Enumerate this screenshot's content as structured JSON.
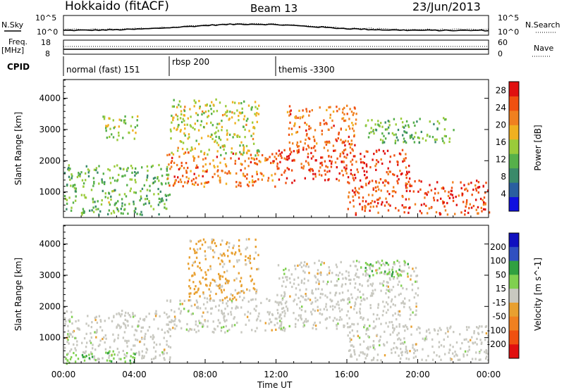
{
  "header": {
    "station": "Hokkaido (fitACF)",
    "beam": "Beam 13",
    "date": "23/Jun/2013"
  },
  "top_panels": {
    "nsky_label": "N.Sky",
    "nsearch_label": "N.Search",
    "nsky_ticks": [
      "10^5",
      "10^0"
    ],
    "nsearch_ticks": [
      "10^5",
      "10^0"
    ],
    "freq_label_1": "Freq.",
    "freq_label_2": "[MHz]",
    "freq_ticks": [
      "18",
      "8"
    ],
    "nave_label": "Nave",
    "nave_ticks": [
      "60",
      "0"
    ],
    "cpid_label": "CPID",
    "cpid_segments": [
      {
        "label": "normal (fast) 151",
        "start_hour": 0
      },
      {
        "label": "rbsp 200",
        "start_hour": 6
      },
      {
        "label": "themis -3300",
        "start_hour": 12
      }
    ]
  },
  "colors": {
    "power_scale": [
      "#1010e0",
      "#2a5fa0",
      "#3a8a6a",
      "#56b04a",
      "#9acb3a",
      "#f0b020",
      "#f08020",
      "#f05010",
      "#e01010"
    ],
    "velocity_scale": [
      "#1010c0",
      "#3050c0",
      "#30a040",
      "#80d050",
      "#c8c8c0",
      "#e8a030",
      "#f08020",
      "#f05010",
      "#e01010"
    ]
  },
  "chart_data": [
    {
      "type": "heatmap",
      "title": "Hokkaido (fitACF) Beam 13 23/Jun/2013",
      "xlabel": "Time UT",
      "ylabel": "Slant Range [km]",
      "x_ticks": [
        "00:00",
        "04:00",
        "08:00",
        "12:00",
        "16:00",
        "20:00",
        "00:00"
      ],
      "y_ticks": [
        "1000",
        "2000",
        "3000",
        "4000"
      ],
      "xlim_hours": [
        0,
        24
      ],
      "ylim_km": [
        180,
        4600
      ],
      "colorbar_label": "Power [dB]",
      "colorbar_ticks": [
        "4",
        "8",
        "12",
        "16",
        "20",
        "24",
        "28"
      ],
      "colorbar_range": [
        0,
        30
      ],
      "scatter_regions": [
        {
          "t0": 0.0,
          "t1": 6.0,
          "r0": 300,
          "r1": 1900,
          "level": 12
        },
        {
          "t0": 2.2,
          "t1": 4.2,
          "r0": 2700,
          "r1": 3500,
          "level": 14
        },
        {
          "t0": 5.8,
          "t1": 12.0,
          "r0": 1200,
          "r1": 2300,
          "level": 24
        },
        {
          "t0": 6.0,
          "t1": 11.0,
          "r0": 2200,
          "r1": 4000,
          "level": 16
        },
        {
          "t0": 12.0,
          "t1": 19.5,
          "r0": 1300,
          "r1": 2400,
          "level": 27
        },
        {
          "t0": 12.5,
          "t1": 16.5,
          "r0": 2400,
          "r1": 3800,
          "level": 24
        },
        {
          "t0": 16.0,
          "t1": 24.0,
          "r0": 300,
          "r1": 1400,
          "level": 27
        },
        {
          "t0": 17.0,
          "t1": 22.0,
          "r0": 2600,
          "r1": 3400,
          "level": 12
        }
      ]
    },
    {
      "type": "heatmap",
      "xlabel": "Time UT",
      "ylabel": "Slant Range [km]",
      "x_ticks": [
        "00:00",
        "04:00",
        "08:00",
        "12:00",
        "16:00",
        "20:00",
        "00:00"
      ],
      "y_ticks": [
        "1000",
        "2000",
        "3000",
        "4000"
      ],
      "xlim_hours": [
        0,
        24
      ],
      "ylim_km": [
        180,
        4600
      ],
      "colorbar_label": "Velocity [m s^-1]",
      "colorbar_ticks": [
        "200",
        "100",
        "50",
        "15",
        "-15",
        "-50",
        "-100",
        "-200"
      ],
      "scatter_regions": [
        {
          "t0": 0.0,
          "t1": 6.0,
          "r0": 300,
          "r1": 1900,
          "level": 0
        },
        {
          "t0": 0.0,
          "t1": 4.0,
          "r0": 200,
          "r1": 600,
          "level": 40
        },
        {
          "t0": 5.8,
          "t1": 12.5,
          "r0": 1200,
          "r1": 2300,
          "level": 0
        },
        {
          "t0": 7.0,
          "t1": 11.0,
          "r0": 2200,
          "r1": 4200,
          "level": -40
        },
        {
          "t0": 12.0,
          "t1": 20.0,
          "r0": 1300,
          "r1": 3500,
          "level": 0
        },
        {
          "t0": 16.0,
          "t1": 24.0,
          "r0": 300,
          "r1": 1400,
          "level": 0
        },
        {
          "t0": 16.5,
          "t1": 19.5,
          "r0": 3000,
          "r1": 3500,
          "level": 40
        }
      ]
    }
  ],
  "time_axis_label": "Time UT"
}
